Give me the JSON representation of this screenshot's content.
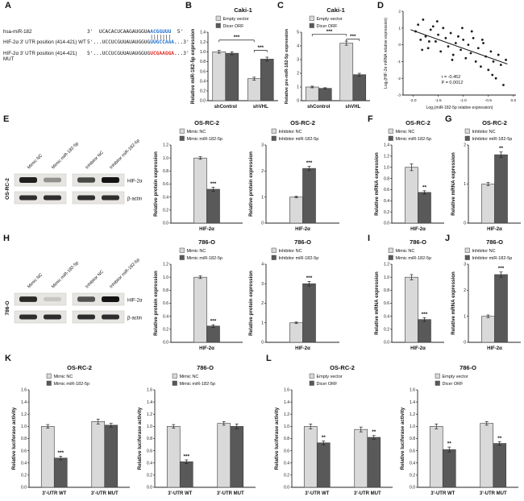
{
  "panel_labels": {
    "A": "A",
    "B": "B",
    "C": "C",
    "D": "D",
    "E": "E",
    "F": "F",
    "G": "G",
    "H": "H",
    "I": "I",
    "J": "J",
    "K": "K",
    "L": "L"
  },
  "colors": {
    "light": "#d9d9d9",
    "dark": "#595959"
  },
  "alignment": {
    "mir": {
      "label": "hsa-miR-182",
      "pre": "3'  UCACACUCAAGAUGGUA",
      "hl": "ACGGUUU",
      "post": "  5'"
    },
    "pairing": "                     |||||||",
    "wt": {
      "label": "HIF-2α 3' UTR position (414-421) WT",
      "pre": "5'...UCCUCGUUAUAUGGUG",
      "hl": "UUGCCAAA",
      "post": "...3'"
    },
    "mut": {
      "label": "HIF-2α 3' UTR position (414-421) MUT",
      "pre": "5'...UCCUCGUUAUAUGGUG",
      "hl": "UCGAAGGA",
      "post": "...3'"
    }
  },
  "blots": [
    {
      "id": "E",
      "cell_line": "OS-RC-2",
      "lanes": [
        "Mimic NC",
        "Mimic miR-182-5p",
        "Inhibitor NC",
        "Inhibitor miR-182-5p"
      ],
      "bands": [
        "HIF-2α",
        "β-actin"
      ],
      "hif": [
        0.95,
        0.4,
        0.75,
        1.0
      ],
      "actin": [
        0.88,
        0.88,
        0.88,
        0.88
      ]
    },
    {
      "id": "H",
      "cell_line": "786-O",
      "lanes": [
        "Mimic NC",
        "Mimic miR-182-5p",
        "Inhibitor NC",
        "Inhibitor miR-182-5p"
      ],
      "bands": [
        "HIF-2α",
        "β-actin"
      ],
      "hif": [
        0.9,
        0.15,
        0.7,
        1.0
      ],
      "actin": [
        0.88,
        0.88,
        0.88,
        0.88
      ]
    }
  ],
  "chart_data": [
    {
      "id": "B",
      "type": "bar",
      "title": "Caki-1",
      "ylabel": "Relative miR-182-5p expression",
      "ymax": 1.4,
      "ystep": 0.2,
      "ydec": 1,
      "categories": [
        "shControl",
        "shVHL"
      ],
      "series": [
        {
          "name": "Empty vector",
          "color": "light",
          "values": [
            1.0,
            0.45
          ],
          "errors": [
            0.03,
            0.03
          ]
        },
        {
          "name": "Dicer ORF",
          "color": "dark",
          "values": [
            0.97,
            0.85
          ],
          "errors": [
            0.03,
            0.04
          ]
        }
      ],
      "sigs": [
        {
          "type": "bracket",
          "from": [
            1,
            0
          ],
          "to": [
            1,
            1
          ],
          "h": 1.03,
          "label": "***"
        },
        {
          "type": "bracket",
          "from": [
            0,
            0
          ],
          "to": [
            1,
            0
          ],
          "h": 1.24,
          "label": "***"
        }
      ]
    },
    {
      "id": "C",
      "type": "bar",
      "title": "Caki-1",
      "ylabel": "Relative pre-miR-182-5p expression",
      "ymax": 5,
      "ystep": 1,
      "ydec": 0,
      "categories": [
        "shControl",
        "shVHL"
      ],
      "series": [
        {
          "name": "Empty vector",
          "color": "light",
          "values": [
            1.0,
            4.2
          ],
          "errors": [
            0.06,
            0.15
          ]
        },
        {
          "name": "Dicer ORF",
          "color": "dark",
          "values": [
            0.9,
            1.9
          ],
          "errors": [
            0.05,
            0.1
          ]
        }
      ],
      "sigs": [
        {
          "type": "bracket",
          "from": [
            1,
            0
          ],
          "to": [
            1,
            1
          ],
          "h": 4.5,
          "label": "***"
        },
        {
          "type": "bracket",
          "from": [
            0,
            0
          ],
          "to": [
            1,
            0
          ],
          "h": 4.85,
          "label": "***"
        }
      ]
    },
    {
      "id": "D",
      "type": "scatter",
      "xlabel": "Log₂(miR-182-5p relative expression)",
      "ylabel": "Log₂(HIF-2α mRNA relative expression)",
      "xlim": [
        -2.2,
        0.05
      ],
      "xticks": [
        -2.0,
        -1.5,
        -1.0,
        -0.5,
        0.0
      ],
      "ylim": [
        -3,
        2
      ],
      "yticks": [
        -3,
        -2,
        -1,
        0,
        1,
        2
      ],
      "r_label": "r = -0.452",
      "p_label": "P = 0.0012",
      "line": [
        [
          -2.05,
          0.9
        ],
        [
          -0.12,
          -1.15
        ]
      ],
      "points": [
        [
          -1.95,
          0.8
        ],
        [
          -1.9,
          1.2
        ],
        [
          -1.85,
          0.3
        ],
        [
          -1.82,
          -0.3
        ],
        [
          -1.8,
          1.5
        ],
        [
          -1.75,
          0.5
        ],
        [
          -1.7,
          -0.2
        ],
        [
          -1.68,
          0.2
        ],
        [
          -1.65,
          0.9
        ],
        [
          -1.6,
          1.1
        ],
        [
          -1.55,
          0.2
        ],
        [
          -1.52,
          1.4
        ],
        [
          -1.5,
          0.6
        ],
        [
          -1.45,
          -0.4
        ],
        [
          -1.4,
          1.0
        ],
        [
          -1.35,
          0.4
        ],
        [
          -1.3,
          -0.1
        ],
        [
          -1.25,
          0.7
        ],
        [
          -1.22,
          -0.9
        ],
        [
          -1.2,
          -0.6
        ],
        [
          -1.15,
          0.1
        ],
        [
          -1.1,
          0.5
        ],
        [
          -1.05,
          -0.3
        ],
        [
          -1.02,
          1.0
        ],
        [
          -1.0,
          0.3
        ],
        [
          -0.95,
          -0.8
        ],
        [
          -0.9,
          0.0
        ],
        [
          -0.85,
          -0.5
        ],
        [
          -0.83,
          0.8
        ],
        [
          -0.8,
          0.4
        ],
        [
          -0.75,
          -1.0
        ],
        [
          -0.7,
          -0.2
        ],
        [
          -0.65,
          -1.3
        ],
        [
          -0.62,
          0.3
        ],
        [
          -0.6,
          0.1
        ],
        [
          -0.55,
          -0.7
        ],
        [
          -0.5,
          -1.5
        ],
        [
          -0.45,
          -0.4
        ],
        [
          -0.42,
          -1.8
        ],
        [
          -0.4,
          -1.0
        ],
        [
          -0.35,
          -2.0
        ],
        [
          -0.3,
          -0.6
        ],
        [
          -0.25,
          -1.2
        ],
        [
          -0.2,
          -2.4
        ],
        [
          -0.15,
          -0.9
        ]
      ]
    },
    {
      "id": "E1",
      "type": "bar",
      "title": "OS-RC-2",
      "ylabel": "Relative protein expression",
      "ymax": 1.2,
      "ystep": 0.2,
      "ydec": 1,
      "categories": [
        "HIF-2α"
      ],
      "series": [
        {
          "name": "Mimic NC",
          "color": "light",
          "values": [
            1.0
          ],
          "errors": [
            0.02
          ]
        },
        {
          "name": "Mimic miR-182-5p",
          "color": "dark",
          "values": [
            0.52
          ],
          "errors": [
            0.03
          ]
        }
      ],
      "sigs": [
        {
          "type": "star",
          "at": [
            0,
            1
          ],
          "label": "***"
        }
      ],
      "legend_x": 0.3
    },
    {
      "id": "E2",
      "type": "bar",
      "title": "OS-RC-2",
      "ylabel": "Relative protein expression",
      "ymax": 3,
      "ystep": 1,
      "ydec": 0,
      "categories": [
        "HIF-2α"
      ],
      "series": [
        {
          "name": "Inhibitor NC",
          "color": "light",
          "values": [
            1.0
          ],
          "errors": [
            0.03
          ]
        },
        {
          "name": "Inhibitor miR-182-5p",
          "color": "dark",
          "values": [
            2.1
          ],
          "errors": [
            0.08
          ]
        }
      ],
      "sigs": [
        {
          "type": "star",
          "at": [
            0,
            1
          ],
          "label": "***"
        }
      ],
      "legend_x": 0.26
    },
    {
      "id": "F",
      "type": "bar",
      "title": "OS-RC-2",
      "ylabel": "Relative mRNA expression",
      "ymax": 1.4,
      "ystep": 0.2,
      "ydec": 1,
      "categories": [
        "HIF-2α"
      ],
      "series": [
        {
          "name": "Mimic NC",
          "color": "light",
          "values": [
            1.0
          ],
          "errors": [
            0.06
          ]
        },
        {
          "name": "Mimic miR-182-5p",
          "color": "dark",
          "values": [
            0.55
          ],
          "errors": [
            0.03
          ]
        }
      ],
      "sigs": [
        {
          "type": "star",
          "at": [
            0,
            1
          ],
          "label": "**"
        }
      ],
      "legend_x": 0.22
    },
    {
      "id": "G",
      "type": "bar",
      "title": "OS-RC-2",
      "ylabel": "Relative mRNA expression",
      "ymax": 2,
      "ystep": 1,
      "ydec": 0,
      "categories": [
        "HIF-2α"
      ],
      "series": [
        {
          "name": "Inhibitor NC",
          "color": "light",
          "values": [
            1.0
          ],
          "errors": [
            0.04
          ]
        },
        {
          "name": "Inhibitor miR-182-5p",
          "color": "dark",
          "values": [
            1.75
          ],
          "errors": [
            0.07
          ]
        }
      ],
      "sigs": [
        {
          "type": "star",
          "at": [
            0,
            1
          ],
          "label": "**"
        }
      ],
      "legend_x": 0.22
    },
    {
      "id": "H1",
      "type": "bar",
      "title": "786-O",
      "ylabel": "Relative protein expression",
      "ymax": 1.2,
      "ystep": 0.2,
      "ydec": 1,
      "categories": [
        "HIF-2α"
      ],
      "series": [
        {
          "name": "Mimic NC",
          "color": "light",
          "values": [
            1.0
          ],
          "errors": [
            0.02
          ]
        },
        {
          "name": "Mimic miR-182-5p",
          "color": "dark",
          "values": [
            0.25
          ],
          "errors": [
            0.02
          ]
        }
      ],
      "sigs": [
        {
          "type": "star",
          "at": [
            0,
            1
          ],
          "label": "***"
        }
      ],
      "legend_x": 0.3
    },
    {
      "id": "H2",
      "type": "bar",
      "title": "786-O",
      "ylabel": "Relative protein expression",
      "ymax": 4,
      "ystep": 1,
      "ydec": 0,
      "categories": [
        "HIF-2α"
      ],
      "series": [
        {
          "name": "Inhibitor NC",
          "color": "light",
          "values": [
            1.0
          ],
          "errors": [
            0.04
          ]
        },
        {
          "name": "Inhibitor miR-182-5p",
          "color": "dark",
          "values": [
            3.0
          ],
          "errors": [
            0.12
          ]
        }
      ],
      "sigs": [
        {
          "type": "star",
          "at": [
            0,
            1
          ],
          "label": "***"
        }
      ],
      "legend_x": 0.26
    },
    {
      "id": "I",
      "type": "bar",
      "title": "786-O",
      "ylabel": "Relative mRNA expression",
      "ymax": 1.2,
      "ystep": 0.2,
      "ydec": 1,
      "categories": [
        "HIF-2α"
      ],
      "series": [
        {
          "name": "Mimic NC",
          "color": "light",
          "values": [
            1.0
          ],
          "errors": [
            0.04
          ]
        },
        {
          "name": "Mimic miR-182-5p",
          "color": "dark",
          "values": [
            0.35
          ],
          "errors": [
            0.03
          ]
        }
      ],
      "sigs": [
        {
          "type": "star",
          "at": [
            0,
            1
          ],
          "label": "***"
        }
      ],
      "legend_x": 0.22
    },
    {
      "id": "J",
      "type": "bar",
      "title": "786-O",
      "ylabel": "Relative mRNA expression",
      "ymax": 3,
      "ystep": 1,
      "ydec": 0,
      "categories": [
        "HIF-2α"
      ],
      "series": [
        {
          "name": "Inhibitor NC",
          "color": "light",
          "values": [
            1.0
          ],
          "errors": [
            0.05
          ]
        },
        {
          "name": "Inhibitor miR-182-5p",
          "color": "dark",
          "values": [
            2.6
          ],
          "errors": [
            0.1
          ]
        }
      ],
      "sigs": [
        {
          "type": "star",
          "at": [
            0,
            1
          ],
          "label": "***"
        }
      ],
      "legend_x": 0.22
    },
    {
      "id": "K1",
      "type": "bar",
      "title": "OS-RC-2",
      "ylabel": "Relative luciferase activity",
      "ymax": 1.6,
      "ystep": 0.2,
      "ydec": 1,
      "categories": [
        "3'-UTR WT",
        "3'-UTR MUT"
      ],
      "series": [
        {
          "name": "Mimic NC",
          "color": "light",
          "values": [
            1.0,
            1.08
          ],
          "errors": [
            0.03,
            0.04
          ]
        },
        {
          "name": "Mimic miR-182-5p",
          "color": "dark",
          "values": [
            0.48,
            1.02
          ],
          "errors": [
            0.03,
            0.03
          ]
        }
      ],
      "sigs": [
        {
          "type": "star",
          "at": [
            0,
            1
          ],
          "label": "***"
        }
      ]
    },
    {
      "id": "K2",
      "type": "bar",
      "title": "786-O",
      "ylabel": "Relative luciferase activity",
      "ymax": 1.6,
      "ystep": 0.2,
      "ydec": 1,
      "categories": [
        "3'-UTR WT",
        "3'-UTR MUT"
      ],
      "series": [
        {
          "name": "Mimic NC",
          "color": "light",
          "values": [
            1.0,
            1.05
          ],
          "errors": [
            0.03,
            0.03
          ]
        },
        {
          "name": "Mimic miR-182-5p",
          "color": "dark",
          "values": [
            0.42,
            1.0
          ],
          "errors": [
            0.03,
            0.04
          ]
        }
      ],
      "sigs": [
        {
          "type": "star",
          "at": [
            0,
            1
          ],
          "label": "***"
        }
      ]
    },
    {
      "id": "L1",
      "type": "bar",
      "title": "OS-RC-2",
      "ylabel": "Relative luciferase activity",
      "ymax": 1.6,
      "ystep": 0.2,
      "ydec": 1,
      "categories": [
        "3'-UTR WT",
        "3'-UTR MUT"
      ],
      "series": [
        {
          "name": "Empty vector",
          "color": "light",
          "values": [
            1.0,
            0.95
          ],
          "errors": [
            0.04,
            0.04
          ]
        },
        {
          "name": "Dicer ORF",
          "color": "dark",
          "values": [
            0.73,
            0.82
          ],
          "errors": [
            0.03,
            0.03
          ]
        }
      ],
      "sigs": [
        {
          "type": "star",
          "at": [
            0,
            1
          ],
          "label": "**"
        },
        {
          "type": "star",
          "at": [
            1,
            1
          ],
          "label": "**"
        }
      ]
    },
    {
      "id": "L2",
      "type": "bar",
      "title": "786-O",
      "ylabel": "Relative luciferase activity",
      "ymax": 1.6,
      "ystep": 0.2,
      "ydec": 1,
      "categories": [
        "3'-UTR WT",
        "3'-UTR MUT"
      ],
      "series": [
        {
          "name": "Empty vector",
          "color": "light",
          "values": [
            1.0,
            1.05
          ],
          "errors": [
            0.04,
            0.03
          ]
        },
        {
          "name": "Dicer ORF",
          "color": "dark",
          "values": [
            0.62,
            0.72
          ],
          "errors": [
            0.04,
            0.03
          ]
        }
      ],
      "sigs": [
        {
          "type": "star",
          "at": [
            0,
            1
          ],
          "label": "**"
        },
        {
          "type": "star",
          "at": [
            1,
            1
          ],
          "label": "**"
        }
      ]
    }
  ]
}
